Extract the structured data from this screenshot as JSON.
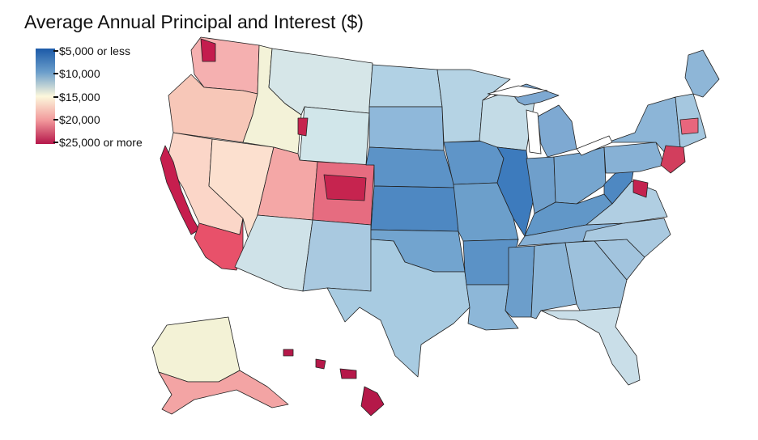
{
  "title": "Average Annual Principal and Interest ($)",
  "legend": {
    "labels": [
      "$5,000 or less",
      "$10,000",
      "$15,000",
      "$20,000",
      "$25,000 or more"
    ],
    "colors": [
      "#1c5aa8",
      "#6c9fcb",
      "#fcf8dc",
      "#f29a9c",
      "#b5174a"
    ]
  },
  "regions": [
    {
      "name": "washington",
      "fill": "#f5b0b0"
    },
    {
      "name": "oregon",
      "fill": "#f7c7b8"
    },
    {
      "name": "california-north",
      "fill": "#fbd6c8"
    },
    {
      "name": "california-coast",
      "fill": "#c61e4e"
    },
    {
      "name": "california-south",
      "fill": "#e8516a"
    },
    {
      "name": "nevada",
      "fill": "#fce0cf"
    },
    {
      "name": "idaho",
      "fill": "#f3f2d8"
    },
    {
      "name": "montana",
      "fill": "#d6e6e8"
    },
    {
      "name": "wyoming",
      "fill": "#d1e6ea"
    },
    {
      "name": "utah",
      "fill": "#f4a7a6"
    },
    {
      "name": "colorado",
      "fill": "#e66c80"
    },
    {
      "name": "arizona",
      "fill": "#cfe2e8"
    },
    {
      "name": "new-mexico",
      "fill": "#a9c9e0"
    },
    {
      "name": "north-dakota",
      "fill": "#b1d1e4"
    },
    {
      "name": "south-dakota",
      "fill": "#8fb8da"
    },
    {
      "name": "nebraska",
      "fill": "#5c93c7"
    },
    {
      "name": "kansas",
      "fill": "#4e88c2"
    },
    {
      "name": "oklahoma",
      "fill": "#72a4cf"
    },
    {
      "name": "texas",
      "fill": "#a8cbe1"
    },
    {
      "name": "minnesota",
      "fill": "#b5d3e4"
    },
    {
      "name": "iowa",
      "fill": "#5f95c8"
    },
    {
      "name": "missouri",
      "fill": "#6c9fcb"
    },
    {
      "name": "arkansas",
      "fill": "#5b92c6"
    },
    {
      "name": "louisiana",
      "fill": "#8db7d8"
    },
    {
      "name": "wisconsin",
      "fill": "#c3dbe6"
    },
    {
      "name": "illinois",
      "fill": "#3d7bbd"
    },
    {
      "name": "michigan",
      "fill": "#7ea9d2"
    },
    {
      "name": "indiana",
      "fill": "#6f9fcb"
    },
    {
      "name": "ohio",
      "fill": "#77a6cf"
    },
    {
      "name": "kentucky",
      "fill": "#6197c8"
    },
    {
      "name": "tennessee",
      "fill": "#86b0d5"
    },
    {
      "name": "mississippi",
      "fill": "#6c9ecb"
    },
    {
      "name": "alabama",
      "fill": "#8ab4d6"
    },
    {
      "name": "georgia",
      "fill": "#9dc1dc"
    },
    {
      "name": "florida",
      "fill": "#c9dee8"
    },
    {
      "name": "south-carolina",
      "fill": "#a2c4de"
    },
    {
      "name": "north-carolina",
      "fill": "#a9c9e0"
    },
    {
      "name": "virginia",
      "fill": "#b0cee2"
    },
    {
      "name": "west-virginia",
      "fill": "#4e88c2"
    },
    {
      "name": "pennsylvania",
      "fill": "#87b1d5"
    },
    {
      "name": "new-york",
      "fill": "#8cb5d7"
    },
    {
      "name": "new-england",
      "fill": "#a5c7df"
    },
    {
      "name": "maine",
      "fill": "#8eb6d7"
    },
    {
      "name": "nyc-metro",
      "fill": "#d23e5d"
    },
    {
      "name": "dc-metro",
      "fill": "#c4234f"
    },
    {
      "name": "boston",
      "fill": "#e8667d"
    },
    {
      "name": "seattle",
      "fill": "#c41c4e"
    },
    {
      "name": "denver",
      "fill": "#c6244f"
    },
    {
      "name": "alaska",
      "fill": "#f3f2d6"
    },
    {
      "name": "alaska-south",
      "fill": "#f3a4a4"
    },
    {
      "name": "hawaii",
      "fill": "#b51849"
    }
  ]
}
